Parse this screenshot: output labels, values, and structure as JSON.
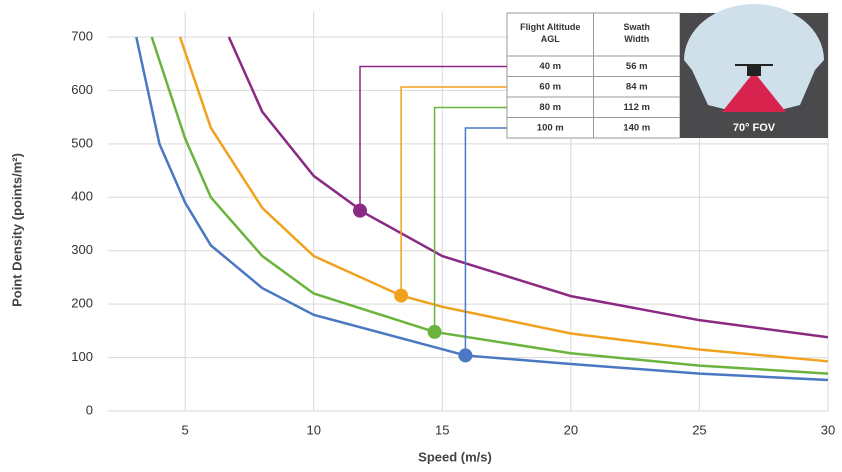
{
  "chart_data": {
    "type": "line",
    "x_label": "Speed (m/s)",
    "y_label": "Point Density (points/m²)",
    "xlim": [
      2,
      30
    ],
    "xticks": [
      5,
      10,
      15,
      20,
      25,
      30
    ],
    "ylim": [
      0,
      700
    ],
    "yticks": [
      0,
      100,
      200,
      300,
      400,
      500,
      600,
      700
    ],
    "grid": true,
    "table": {
      "headers": [
        "Flight Altitude AGL",
        "Swath Width"
      ],
      "rows": [
        [
          "40 m",
          "56 m"
        ],
        [
          "60 m",
          "84 m"
        ],
        [
          "80 m",
          "112 m"
        ],
        [
          "100 m",
          "140 m"
        ]
      ]
    },
    "image_caption": "70° FOV",
    "series": [
      {
        "color": "#8b2a82",
        "x": [
          6.7,
          8,
          10,
          12,
          15,
          20,
          25,
          30
        ],
        "values": [
          700,
          560,
          440,
          370,
          290,
          215,
          170,
          138
        ],
        "marker": {
          "x": 11.8,
          "y": 375
        }
      },
      {
        "color": "#f0a21e",
        "x": [
          4.8,
          6,
          8,
          10,
          13.4,
          15,
          20,
          25,
          30
        ],
        "values": [
          700,
          530,
          380,
          290,
          216,
          195,
          145,
          115,
          93
        ],
        "marker": {
          "x": 13.4,
          "y": 216
        }
      },
      {
        "color": "#6ab43e",
        "x": [
          3.7,
          5,
          6,
          8,
          10,
          14.7,
          20,
          25,
          30
        ],
        "values": [
          700,
          510,
          400,
          290,
          220,
          148,
          108,
          85,
          70
        ],
        "marker": {
          "x": 14.7,
          "y": 148
        }
      },
      {
        "color": "#4a78c2",
        "x": [
          3.1,
          4,
          5,
          6,
          8,
          10,
          15.9,
          20,
          25,
          30
        ],
        "values": [
          700,
          500,
          390,
          310,
          230,
          180,
          104,
          88,
          70,
          58
        ],
        "marker": {
          "x": 15.9,
          "y": 104
        }
      }
    ]
  }
}
